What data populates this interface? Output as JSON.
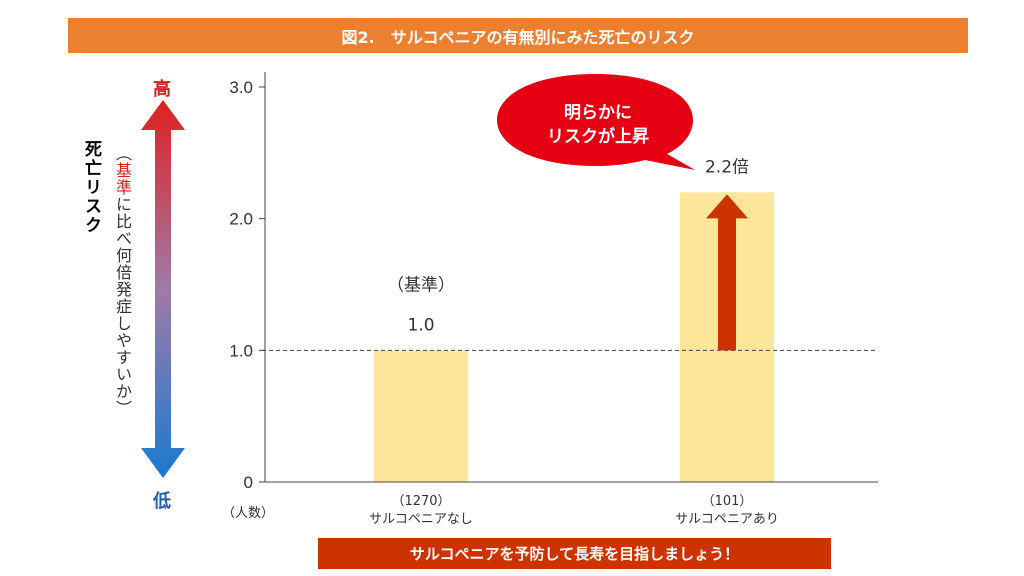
{
  "title": "図2.　サルコペニアの有無別にみた死亡のリスク",
  "footer": "サルコペニアを予防して長寿を目指しましょう！",
  "y_axis": {
    "title": "死亡リスク",
    "note_open": "（",
    "note_red": "基準",
    "note_rest": "に比べ何倍発症しやすいか）",
    "high_label": "高",
    "low_label": "低"
  },
  "people_label": "（人数）",
  "callout": {
    "line1": "明らかに",
    "line2": "リスクが上昇"
  },
  "reference_label": "（基準）",
  "colors": {
    "title_bar": "#ec8030",
    "footer_bar": "#cc3300",
    "bar_fill": "#fde59a",
    "arrow": "#cc3300",
    "bubble": "#e60012",
    "risk_high": "#e02020",
    "risk_low": "#1a7ad0"
  },
  "chart_data": {
    "type": "bar",
    "categories": [
      "サルコペニアなし",
      "サルコペニアあり"
    ],
    "counts": [
      "（1270）",
      "（101）"
    ],
    "values": [
      1.0,
      2.2
    ],
    "data_labels": [
      "1.0",
      "2.2倍"
    ],
    "y_ticks": [
      "0",
      "1.0",
      "2.0",
      "3.0"
    ],
    "ylim": [
      0,
      3.0
    ],
    "reference_line": 1.0,
    "grid": false
  }
}
